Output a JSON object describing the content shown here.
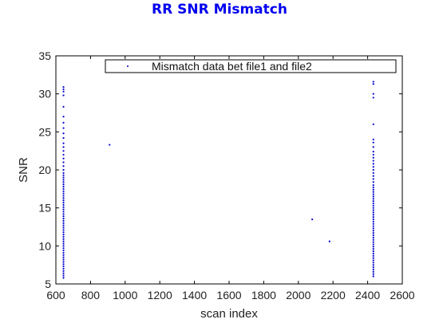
{
  "chart_data": {
    "type": "scatter",
    "title": "RR SNR Mismatch",
    "xlabel": "scan index",
    "ylabel": "SNR",
    "xlim": [
      600,
      2600
    ],
    "ylim": [
      5,
      35
    ],
    "xticks": [
      600,
      800,
      1000,
      1200,
      1400,
      1600,
      1800,
      2000,
      2200,
      2400,
      2600
    ],
    "yticks": [
      5,
      10,
      15,
      20,
      25,
      30,
      35
    ],
    "grid": "off",
    "legend": {
      "placement": "top-center",
      "entries": [
        "Mismatch data bet file1 and file2"
      ]
    },
    "colors": {
      "title": "#0000ee",
      "marker": "#0000cc"
    },
    "series": [
      {
        "name": "Mismatch data bet file1 and file2",
        "marker": "dot",
        "points": [
          [
            644,
            5.8
          ],
          [
            644,
            6.1
          ],
          [
            644,
            6.4
          ],
          [
            644,
            6.7
          ],
          [
            644,
            7.0
          ],
          [
            644,
            7.3
          ],
          [
            644,
            7.6
          ],
          [
            644,
            7.9
          ],
          [
            644,
            8.2
          ],
          [
            644,
            8.5
          ],
          [
            644,
            8.8
          ],
          [
            644,
            9.1
          ],
          [
            644,
            9.4
          ],
          [
            644,
            9.7
          ],
          [
            644,
            10.0
          ],
          [
            644,
            10.3
          ],
          [
            644,
            10.6
          ],
          [
            644,
            10.9
          ],
          [
            644,
            11.2
          ],
          [
            644,
            11.5
          ],
          [
            644,
            11.8
          ],
          [
            644,
            12.1
          ],
          [
            644,
            12.4
          ],
          [
            644,
            12.7
          ],
          [
            644,
            13.0
          ],
          [
            644,
            13.3
          ],
          [
            644,
            13.6
          ],
          [
            644,
            13.9
          ],
          [
            644,
            14.2
          ],
          [
            644,
            14.5
          ],
          [
            644,
            14.8
          ],
          [
            644,
            15.1
          ],
          [
            644,
            15.4
          ],
          [
            644,
            15.7
          ],
          [
            644,
            16.0
          ],
          [
            644,
            16.3
          ],
          [
            644,
            16.6
          ],
          [
            644,
            16.9
          ],
          [
            644,
            17.2
          ],
          [
            644,
            17.5
          ],
          [
            644,
            17.8
          ],
          [
            644,
            18.1
          ],
          [
            644,
            18.4
          ],
          [
            644,
            18.7
          ],
          [
            644,
            19.0
          ],
          [
            644,
            19.3
          ],
          [
            644,
            19.6
          ],
          [
            644,
            20.0
          ],
          [
            644,
            20.5
          ],
          [
            644,
            21.0
          ],
          [
            644,
            21.5
          ],
          [
            644,
            22.0
          ],
          [
            644,
            22.5
          ],
          [
            644,
            23.0
          ],
          [
            644,
            23.5
          ],
          [
            644,
            24.2
          ],
          [
            644,
            24.8
          ],
          [
            644,
            25.5
          ],
          [
            644,
            26.2
          ],
          [
            644,
            27.0
          ],
          [
            644,
            28.3
          ],
          [
            644,
            29.8
          ],
          [
            644,
            30.3
          ],
          [
            644,
            30.6
          ],
          [
            644,
            30.9
          ],
          [
            910,
            23.3
          ],
          [
            2080,
            13.5
          ],
          [
            2180,
            10.6
          ],
          [
            2433,
            6.0
          ],
          [
            2433,
            6.3
          ],
          [
            2433,
            6.6
          ],
          [
            2433,
            6.9
          ],
          [
            2433,
            7.2
          ],
          [
            2433,
            7.5
          ],
          [
            2433,
            7.8
          ],
          [
            2433,
            8.1
          ],
          [
            2433,
            8.4
          ],
          [
            2433,
            8.7
          ],
          [
            2433,
            9.0
          ],
          [
            2433,
            9.3
          ],
          [
            2433,
            9.6
          ],
          [
            2433,
            9.9
          ],
          [
            2433,
            10.2
          ],
          [
            2433,
            10.5
          ],
          [
            2433,
            10.8
          ],
          [
            2433,
            11.1
          ],
          [
            2433,
            11.4
          ],
          [
            2433,
            11.7
          ],
          [
            2433,
            12.0
          ],
          [
            2433,
            12.3
          ],
          [
            2433,
            12.6
          ],
          [
            2433,
            12.9
          ],
          [
            2433,
            13.2
          ],
          [
            2433,
            13.5
          ],
          [
            2433,
            13.8
          ],
          [
            2433,
            14.1
          ],
          [
            2433,
            14.4
          ],
          [
            2433,
            14.7
          ],
          [
            2433,
            15.0
          ],
          [
            2433,
            15.3
          ],
          [
            2433,
            15.6
          ],
          [
            2433,
            15.9
          ],
          [
            2433,
            16.2
          ],
          [
            2433,
            16.5
          ],
          [
            2433,
            16.8
          ],
          [
            2433,
            17.1
          ],
          [
            2433,
            17.4
          ],
          [
            2433,
            17.7
          ],
          [
            2433,
            18.0
          ],
          [
            2433,
            18.4
          ],
          [
            2433,
            18.8
          ],
          [
            2433,
            19.2
          ],
          [
            2433,
            19.6
          ],
          [
            2433,
            20.0
          ],
          [
            2433,
            20.4
          ],
          [
            2433,
            20.8
          ],
          [
            2433,
            21.2
          ],
          [
            2433,
            21.6
          ],
          [
            2433,
            22.0
          ],
          [
            2433,
            22.4
          ],
          [
            2433,
            23.0
          ],
          [
            2433,
            23.6
          ],
          [
            2433,
            24.0
          ],
          [
            2433,
            26.0
          ],
          [
            2433,
            29.5
          ],
          [
            2433,
            30.0
          ],
          [
            2433,
            31.3
          ],
          [
            2433,
            31.6
          ]
        ]
      }
    ]
  }
}
